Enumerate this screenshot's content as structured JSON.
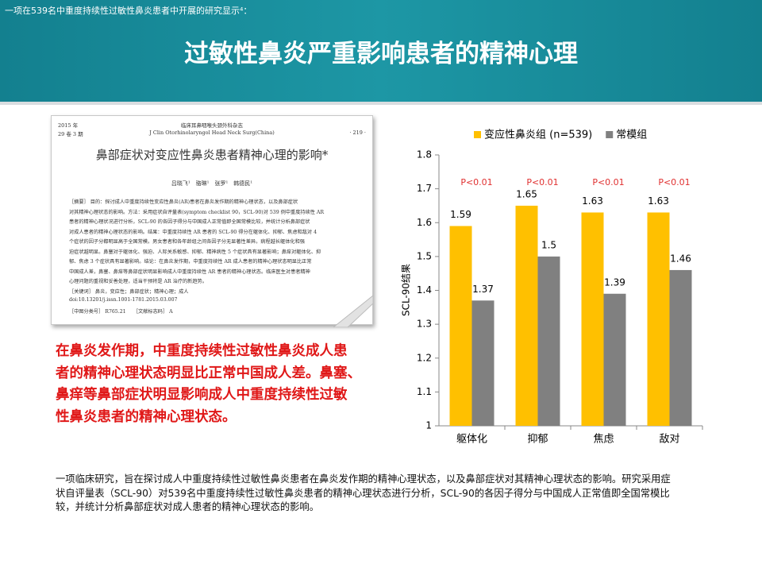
{
  "header": {
    "note": "一项在539名中重度持续性过敏性鼻炎患者中开展的研究显示⁴：",
    "title": "过敏性鼻炎严重影响患者的精神心理"
  },
  "paper": {
    "year": "2015 年",
    "volume": "29 卷 3 期",
    "journal_cn": "临床耳鼻咽喉头颈外科杂志",
    "journal_en": "J Clin Otorhinolaryngol Head Neck Surg(China)",
    "page": "· 219 ·",
    "title": "鼻部症状对变应性鼻炎患者精神心理的影响*",
    "authors": "吕晓飞¹　骆琳¹　张罗¹　韩德民¹",
    "abstract_lines": [
      "［摘要］ 目的：探讨成人中重度持续性变应性鼻炎(AR)患者在鼻炎发作期的精神心理状态，以及鼻部症状",
      "对其精神心理状态的影响。方法：采用症状自评量表(symptom checklist 90，SCL-90)对 539 例中重度持续性 AR",
      "患者的精神心理状况进行分析，SCL-90 的各因子得分与中国成人正常值即全国常模比较，并统计分析鼻部症状",
      "对成人患者的精神心理状态的影响。结果：中重度持续性 AR 患者的 SCL-90 得分在躯体化、抑郁、焦虑和敌对 4",
      "个症状的因子分都明显高于全国常模。男女患者和各年龄组之间各因子分无显著性差异。病程越长躯体化和强",
      "迫症状越明显。鼻塞对于躯体化、强迫、人际关系敏感、抑郁、精神病性 5 个症状具有显著影响；鼻痒对躯体化、抑",
      "郁、焦虑 3 个症状具有显著影响。结论：在鼻炎发作期，中重度持续性 AR 成人患者的精神心理状态明显比正常",
      "中国成人差，鼻塞、鼻痒等鼻部症状明显影响成人中重度持续性 AR 患者的精神心理状态。临床医生对患者精神",
      "心理问题的重视和妥善处理，适当干预将是 AR 治疗的新趋势。",
      "［关键词］ 鼻炎，变应性；鼻部症状；精神心理；成人",
      "doi:10.13201/j.issn.1001-1781.2015.03.007",
      "［中图分类号］ R765.21　　［文献标志码］ A"
    ]
  },
  "highlight": {
    "lines": [
      "在鼻炎发作期，中重度持续性过敏性鼻炎成人患",
      "者的精神心理状态明显比正常中国成人差。鼻塞、",
      "鼻痒等鼻部症状明显影响成人中重度持续性过敏",
      "性鼻炎患者的精神心理状态。"
    ]
  },
  "footer": {
    "lines": [
      "一项临床研究，旨在探讨成人中重度持续性过敏性鼻炎患者在鼻炎发作期的精神心理状态，以及鼻部症状对其精神心理状态的影响。研究采用症",
      "状自评量表（SCL-90）对539名中重度持续性过敏性鼻炎患者的精神心理状态进行分析，SCL-90的各因子得分与中国成人正常值即全国常模比",
      "较，并统计分析鼻部症状对成人患者的精神心理状态的影响。"
    ]
  },
  "chart_data": {
    "type": "bar",
    "y_label": "SCL-90结果",
    "categories": [
      "躯体化",
      "抑郁",
      "焦虑",
      "敌对"
    ],
    "series": [
      {
        "name": "变应性鼻炎组 (n=539)",
        "color": "#ffc000",
        "values": [
          1.59,
          1.65,
          1.63,
          1.63
        ]
      },
      {
        "name": "常模组",
        "color": "#808080",
        "values": [
          1.37,
          1.5,
          1.39,
          1.46
        ]
      }
    ],
    "annotations": [
      "P<0.01",
      "P<0.01",
      "P<0.01",
      "P<0.01"
    ],
    "annotation_color": "#e03030",
    "ylim": [
      1,
      1.8
    ],
    "yticks": [
      1,
      1.1,
      1.2,
      1.3,
      1.4,
      1.5,
      1.6,
      1.7,
      1.8
    ],
    "legend": "top"
  }
}
